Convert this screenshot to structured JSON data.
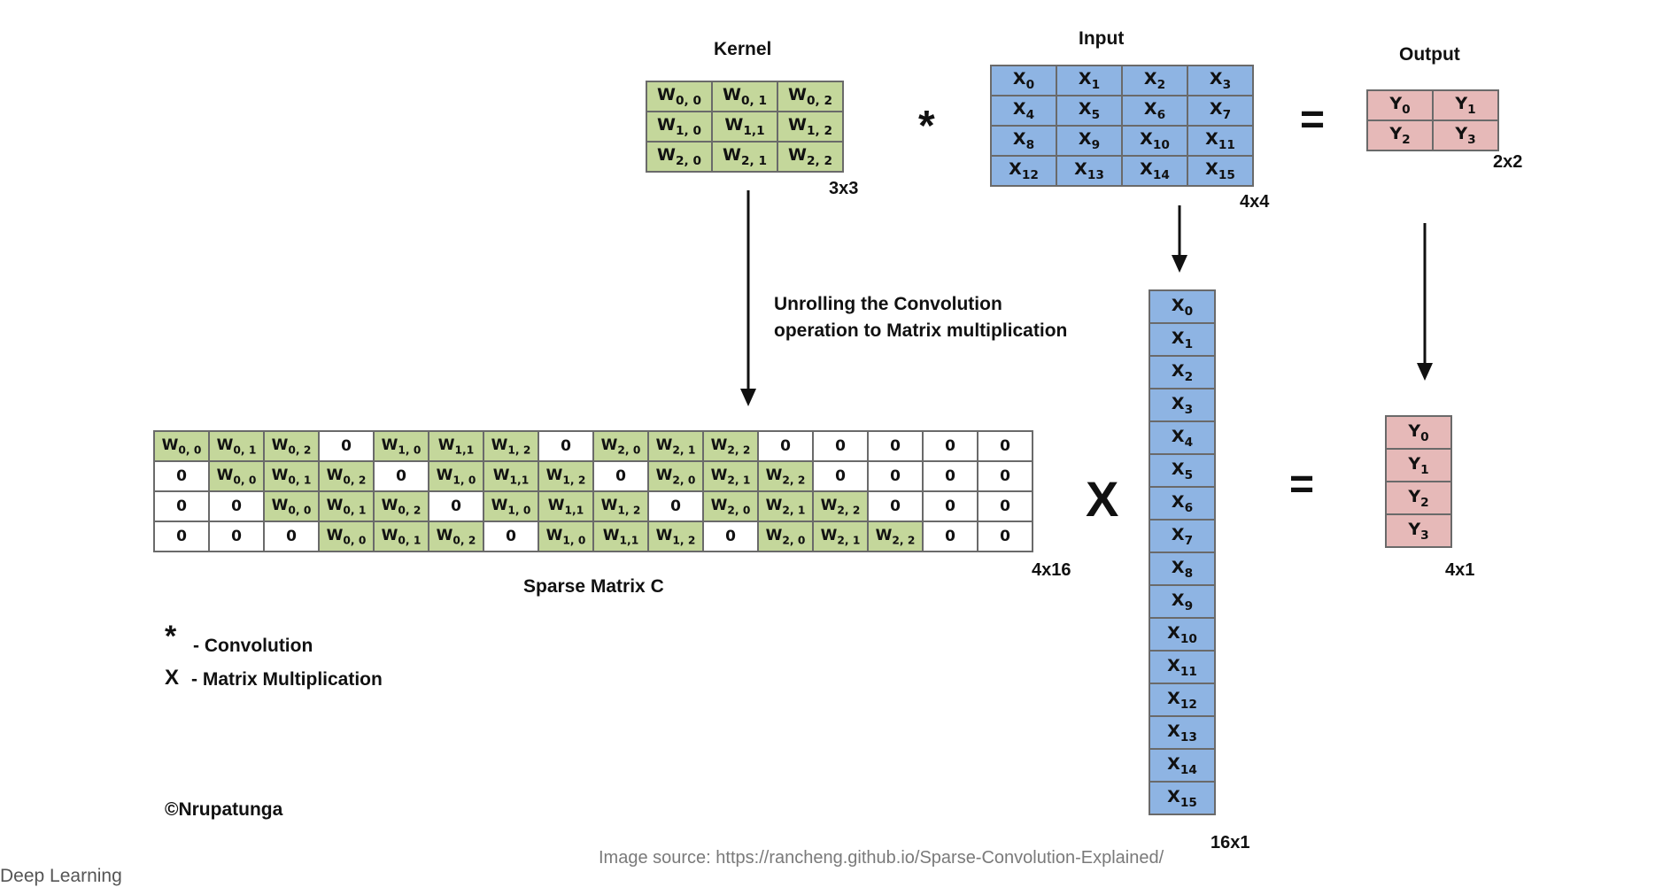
{
  "labels": {
    "kernel": "Kernel",
    "input": "Input",
    "output": "Output",
    "sparse": "Sparse Matrix C",
    "unroll_line1": "Unrolling the Convolution",
    "unroll_line2": "operation to Matrix multiplication",
    "copyright": "©Nrupatunga"
  },
  "dims": {
    "kernel": "3x3",
    "input": "4x4",
    "output": "2x2",
    "sparse": "4x16",
    "xcol": "16x1",
    "ycol": "4x1"
  },
  "operators": {
    "conv": "*",
    "equals_top": "=",
    "matmul": "X",
    "equals_bottom": "="
  },
  "legend": {
    "conv_symbol": "*",
    "conv_text": "-  Convolution",
    "matmul_symbol": "X",
    "matmul_text": "-   Matrix Multiplication"
  },
  "kernel": [
    [
      "W0, 0",
      "W0, 1",
      "W0, 2"
    ],
    [
      "W1, 0",
      "W1,1",
      "W1, 2"
    ],
    [
      "W2, 0",
      "W2, 1",
      "W2, 2"
    ]
  ],
  "input": [
    [
      "X0",
      "X1",
      "X2",
      "X3"
    ],
    [
      "X4",
      "X5",
      "X6",
      "X7"
    ],
    [
      "X8",
      "X9",
      "X10",
      "X11"
    ],
    [
      "X12",
      "X13",
      "X14",
      "X15"
    ]
  ],
  "output": [
    [
      "Y0",
      "Y1"
    ],
    [
      "Y2",
      "Y3"
    ]
  ],
  "sparse": [
    [
      "W0, 0",
      "W0, 1",
      "W0, 2",
      "0",
      "W1, 0",
      "W1,1",
      "W1, 2",
      "0",
      "W2, 0",
      "W2, 1",
      "W2, 2",
      "0",
      "0",
      "0",
      "0",
      "0"
    ],
    [
      "0",
      "W0, 0",
      "W0, 1",
      "W0, 2",
      "0",
      "W1, 0",
      "W1,1",
      "W1, 2",
      "0",
      "W2, 0",
      "W2, 1",
      "W2, 2",
      "0",
      "0",
      "0",
      "0"
    ],
    [
      "0",
      "0",
      "W0, 0",
      "W0, 1",
      "W0, 2",
      "0",
      "W1, 0",
      "W1,1",
      "W1, 2",
      "0",
      "W2, 0",
      "W2, 1",
      "W2, 2",
      "0",
      "0",
      "0"
    ],
    [
      "0",
      "0",
      "0",
      "W0, 0",
      "W0, 1",
      "W0, 2",
      "0",
      "W1, 0",
      "W1,1",
      "W1, 2",
      "0",
      "W2, 0",
      "W2, 1",
      "W2, 2",
      "0",
      "0"
    ]
  ],
  "xcol": [
    "X0",
    "X1",
    "X2",
    "X3",
    "X4",
    "X5",
    "X6",
    "X7",
    "X8",
    "X9",
    "X10",
    "X11",
    "X12",
    "X13",
    "X14",
    "X15"
  ],
  "ycol": [
    "Y0",
    "Y1",
    "Y2",
    "Y3"
  ],
  "footer": {
    "source": "Image source: https://rancheng.github.io/Sparse-Convolution-Explained/",
    "course": "Deep Learning"
  },
  "colors": {
    "weight_cell": "#c4d79b",
    "input_cell": "#8eb4e3",
    "output_cell": "#e6b9b8",
    "zero_cell": "#ffffff"
  }
}
